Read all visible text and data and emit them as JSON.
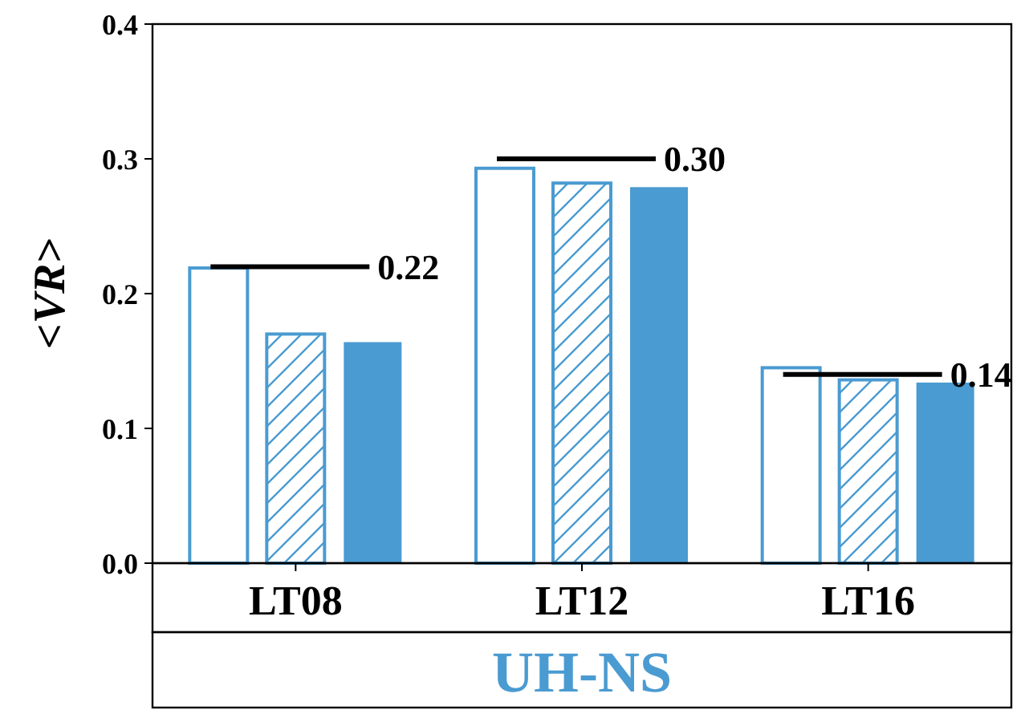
{
  "chart_data": {
    "type": "bar",
    "xlabel": "UH-NS",
    "ylabel": "<VR>",
    "categories": [
      "LT08",
      "LT12",
      "LT16"
    ],
    "series": [
      {
        "color": "#4a9bd1",
        "values": [
          0.219,
          0.293,
          0.145
        ]
      },
      {
        "color": "#4a9bd1",
        "values": [
          0.17,
          0.282,
          0.136
        ]
      },
      {
        "color": "#4a9bd1",
        "values": [
          0.164,
          0.279,
          0.134
        ]
      }
    ],
    "ylim": [
      0,
      0.4
    ],
    "yticks": [
      {
        "value": 0,
        "label": "0.0"
      },
      0.1,
      0.2,
      0.3,
      0.4
    ],
    "grid": false,
    "ref_lines": [
      {
        "axis": "y",
        "value": 0.22,
        "label": "0.22"
      },
      {
        "axis": "y",
        "value": 0.3,
        "label": "0.30"
      },
      {
        "axis": "y",
        "value": 0.14,
        "label": "0.14"
      }
    ]
  }
}
